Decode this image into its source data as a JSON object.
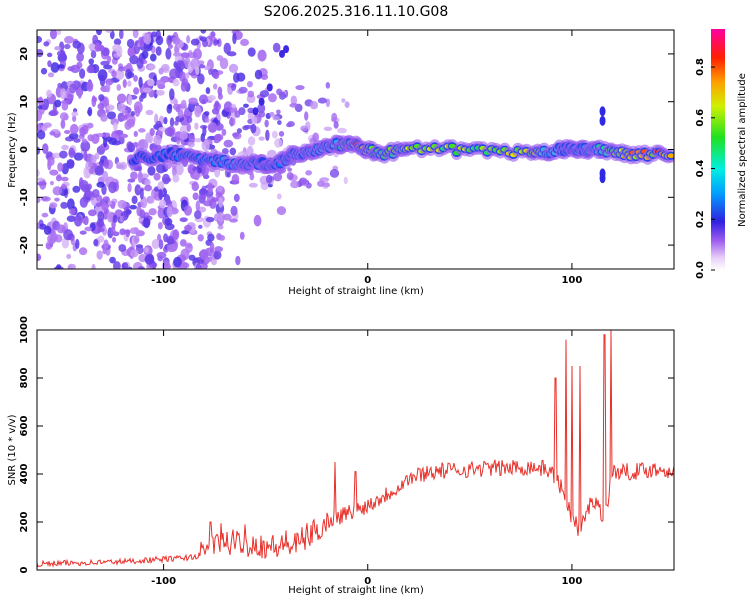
{
  "chart_data": [
    {
      "type": "heatmap",
      "title": "S206.2025.316.11.10.G08",
      "xlabel": "Height of straight line (km)",
      "ylabel": "Frequency (Hz)",
      "xlim": [
        -162,
        150
      ],
      "ylim": [
        -25,
        25
      ],
      "xticks": [
        -100,
        0,
        100
      ],
      "yticks": [
        20,
        10,
        0,
        -10,
        -20
      ],
      "description_trace": {
        "x": [
          -115,
          -95,
          -80,
          -65,
          -55,
          -45,
          -35,
          -25,
          -15,
          -5,
          5,
          20,
          50,
          80,
          95,
          105,
          115,
          130,
          150
        ],
        "y": [
          -2,
          -1,
          -2,
          -3,
          -3,
          -3,
          -1,
          0,
          1,
          1,
          -1,
          0,
          0,
          -1,
          0,
          0,
          0,
          -1,
          -1
        ],
        "amplitude": [
          0.2,
          0.3,
          0.3,
          0.35,
          0.3,
          0.3,
          0.35,
          0.4,
          0.45,
          0.85,
          0.55,
          0.7,
          0.65,
          0.7,
          0.3,
          0.3,
          0.5,
          0.8,
          0.85
        ]
      },
      "colorbar": {
        "label": "Normalized spectral amplitude",
        "range": [
          0.0,
          0.95
        ],
        "ticks": [
          "0.0",
          "0.2",
          "0.4",
          "0.6",
          "0.8"
        ]
      }
    },
    {
      "type": "line",
      "xlabel": "Height of straight line (km)",
      "ylabel": "SNR (10 * v/v)",
      "xlim": [
        -162,
        150
      ],
      "ylim": [
        0,
        1000
      ],
      "xticks": [
        -100,
        0,
        100
      ],
      "yticks": [
        0,
        200,
        400,
        600,
        800,
        1000
      ],
      "series": [
        {
          "name": "SNR",
          "color": "#e8302a",
          "x": [
            -162,
            -140,
            -120,
            -100,
            -90,
            -82,
            -78,
            -72,
            -65,
            -58,
            -50,
            -42,
            -36,
            -30,
            -24,
            -18,
            -12,
            -6,
            0,
            6,
            12,
            20,
            30,
            40,
            50,
            60,
            70,
            80,
            88,
            92,
            96,
            100,
            104,
            110,
            116,
            120,
            130,
            140,
            150
          ],
          "y": [
            25,
            30,
            35,
            45,
            50,
            60,
            90,
            110,
            115,
            110,
            100,
            95,
            100,
            140,
            170,
            210,
            230,
            250,
            270,
            300,
            330,
            380,
            410,
            415,
            420,
            425,
            425,
            430,
            420,
            390,
            320,
            220,
            160,
            300,
            220,
            410,
            410,
            420,
            415
          ]
        }
      ],
      "spikes": [
        {
          "x": -77,
          "y": 200
        },
        {
          "x": -72,
          "y": 195
        },
        {
          "x": -60,
          "y": 190
        },
        {
          "x": -40,
          "y": 165
        },
        {
          "x": -16,
          "y": 450
        },
        {
          "x": -6,
          "y": 410
        },
        {
          "x": 92,
          "y": 800
        },
        {
          "x": 97,
          "y": 960
        },
        {
          "x": 100,
          "y": 850
        },
        {
          "x": 104,
          "y": 850
        },
        {
          "x": 116,
          "y": 980
        },
        {
          "x": 119,
          "y": 1000
        }
      ]
    }
  ]
}
